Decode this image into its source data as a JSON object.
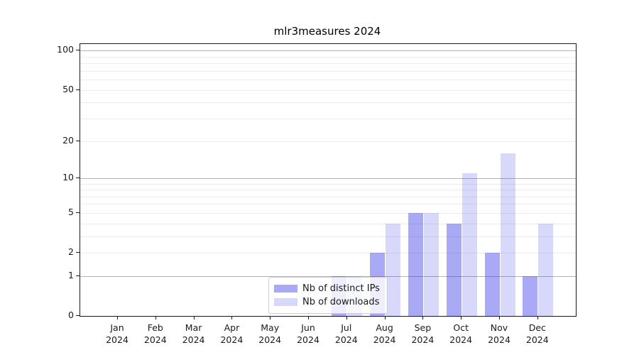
{
  "chart_data": {
    "type": "bar",
    "title": "mlr3measures 2024",
    "xlabel": "",
    "ylabel": "",
    "year_label": "2024",
    "categories": [
      "Jan",
      "Feb",
      "Mar",
      "Apr",
      "May",
      "Jun",
      "Jul",
      "Aug",
      "Sep",
      "Oct",
      "Nov",
      "Dec"
    ],
    "series": [
      {
        "name": "Nb of distinct IPs",
        "color": "rgba(40,40,230,0.40)",
        "values": [
          0,
          0,
          0,
          0,
          0,
          0,
          1,
          2,
          5,
          4,
          2,
          1
        ]
      },
      {
        "name": "Nb of downloads",
        "color": "rgba(40,40,230,0.18)",
        "values": [
          0,
          0,
          0,
          0,
          0,
          0,
          1,
          4,
          5,
          11,
          16,
          4
        ]
      }
    ],
    "yscale": "log1p",
    "ylim": [
      0,
      112
    ],
    "yticks": [
      0,
      1,
      2,
      5,
      10,
      20,
      50,
      100
    ],
    "grid": {
      "on": true,
      "major_values": [
        1,
        10,
        100
      ],
      "minor_values": [
        2,
        3,
        4,
        5,
        6,
        7,
        8,
        9,
        20,
        30,
        40,
        50,
        60,
        70,
        80,
        90
      ],
      "major_color": "#b3b3b3",
      "minor_color": "#ececec"
    },
    "legend": {
      "position": "lower center",
      "entries": [
        "Nb of distinct IPs",
        "Nb of downloads"
      ]
    }
  }
}
